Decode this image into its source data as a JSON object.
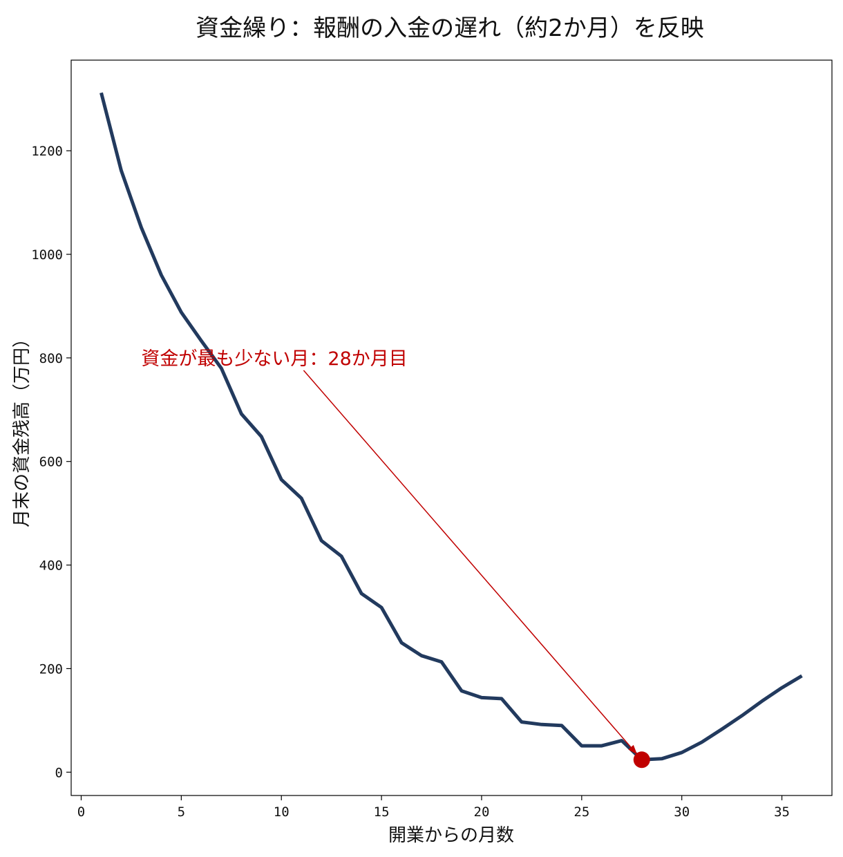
{
  "chart_data": {
    "type": "line",
    "title": "資金繰り：報酬の入金の遅れ（約2か月）を反映",
    "xlabel": "開業からの月数",
    "ylabel": "月末の資金残高（万円）",
    "xlim": [
      -0.5,
      37.5
    ],
    "ylim": [
      -45,
      1375
    ],
    "xticks": [
      0,
      5,
      10,
      15,
      20,
      25,
      30,
      35
    ],
    "yticks": [
      0,
      200,
      400,
      600,
      800,
      1000,
      1200
    ],
    "grid": false,
    "series": [
      {
        "name": "",
        "color": "#223a5e",
        "x": [
          1,
          2,
          3,
          4,
          5,
          6,
          7,
          8,
          9,
          10,
          11,
          12,
          13,
          14,
          15,
          16,
          17,
          18,
          19,
          20,
          21,
          22,
          23,
          24,
          25,
          26,
          27,
          28,
          29,
          30,
          31,
          32,
          33,
          34,
          35,
          36
        ],
        "y": [
          1312,
          1162,
          1052,
          960,
          888,
          833,
          780,
          692,
          648,
          565,
          529,
          447,
          417,
          345,
          318,
          250,
          225,
          213,
          157,
          144,
          142,
          97,
          92,
          90,
          51,
          51,
          61,
          24,
          26,
          38,
          58,
          83,
          109,
          137,
          163,
          186
        ]
      }
    ],
    "highlight": {
      "x": 28,
      "y": 24,
      "color": "#c00000",
      "text": "資金が最も少ない月：28か月目",
      "text_x": 3,
      "text_y": 800
    }
  }
}
